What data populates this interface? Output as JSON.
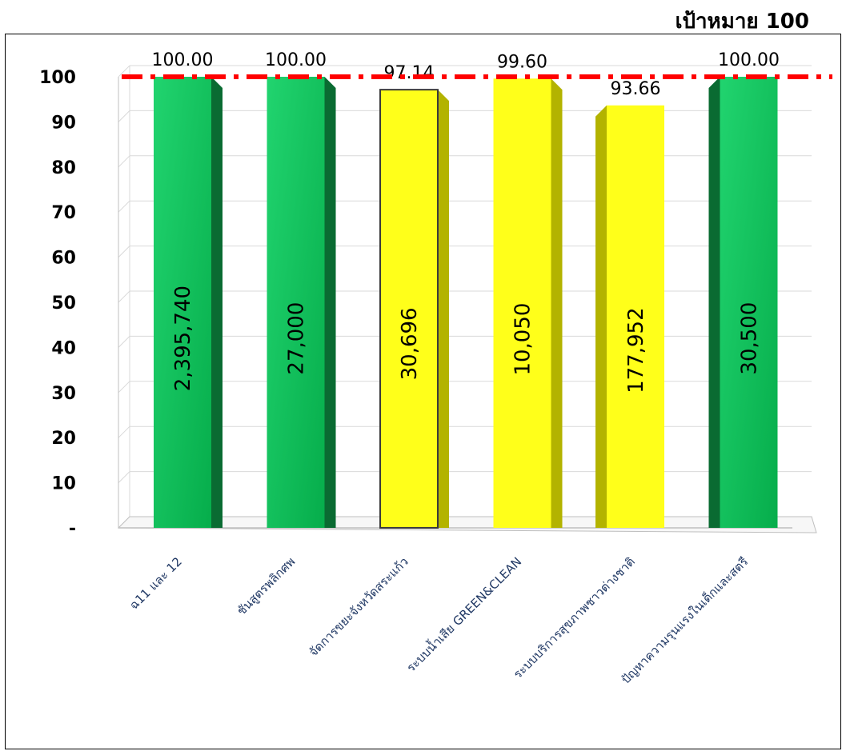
{
  "target_label": "เป้าหมาย 100",
  "colors": {
    "green": "#17b85a",
    "green_dark": "#0a6b32",
    "yellow": "#ffff1a",
    "yellow_dark": "#b3b300",
    "target_line": "#ff0000",
    "category_text": "#203864"
  },
  "chart_data": {
    "type": "bar",
    "title": "",
    "xlabel": "",
    "ylabel": "",
    "ylim": [
      0,
      100
    ],
    "y_ticks": [
      "-",
      "10",
      "20",
      "30",
      "40",
      "50",
      "60",
      "70",
      "80",
      "90",
      "100"
    ],
    "target": 100,
    "grid": true,
    "categories": [
      "ฉ11 และ 12",
      "ชันสูตรพลิกศพ",
      "จัดการขยะจังหวัดสระแก้ว",
      "ระบบน้ำเสีย GREEN&CLEAN",
      "ระบบบริการสุขภาพชาวต่างชาติ",
      "ปัญหาความรุนแรงในเด็กและสตรี"
    ],
    "series": [
      {
        "values": [
          100.0,
          100.0,
          97.14,
          99.6,
          93.66,
          100.0
        ],
        "value_labels": [
          "100.00",
          "100.00",
          "97.14",
          "99.60",
          "93.66",
          "100.00"
        ],
        "inner_labels": [
          "2,395,740",
          "27,000",
          "30,696",
          "10,050",
          "177,952",
          "30,500"
        ],
        "bar_colors": [
          "green",
          "green",
          "yellow",
          "yellow",
          "yellow",
          "green"
        ]
      }
    ]
  }
}
